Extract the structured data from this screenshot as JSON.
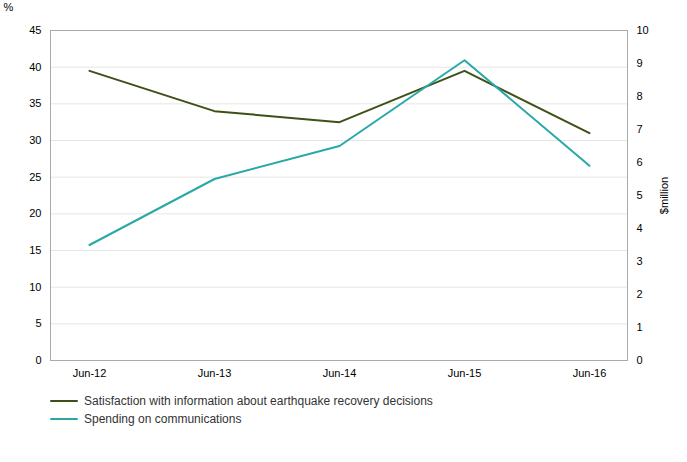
{
  "chart_data": {
    "type": "line",
    "categories": [
      "Jun-12",
      "Jun-13",
      "Jun-14",
      "Jun-15",
      "Jun-16"
    ],
    "series": [
      {
        "name": "Satisfaction with information about earthquake recovery decisions",
        "color": "#3d5016",
        "values": [
          39.5,
          34.0,
          32.5,
          39.5,
          31.0
        ]
      },
      {
        "name": "Spending on communications",
        "color": "#29a8a8",
        "values": [
          3.5,
          5.5,
          6.5,
          9.1,
          5.9
        ],
        "axis": "y2"
      }
    ],
    "ylabel": "%",
    "y2label": "$million",
    "ylim": [
      0,
      45
    ],
    "yticks": [
      0,
      5,
      10,
      15,
      20,
      25,
      30,
      35,
      40,
      45
    ],
    "y2lim": [
      0,
      10
    ],
    "y2ticks": [
      0,
      1,
      2,
      3,
      4,
      5,
      6,
      7,
      8,
      9,
      10
    ],
    "grid": true,
    "legend": "lower left"
  }
}
